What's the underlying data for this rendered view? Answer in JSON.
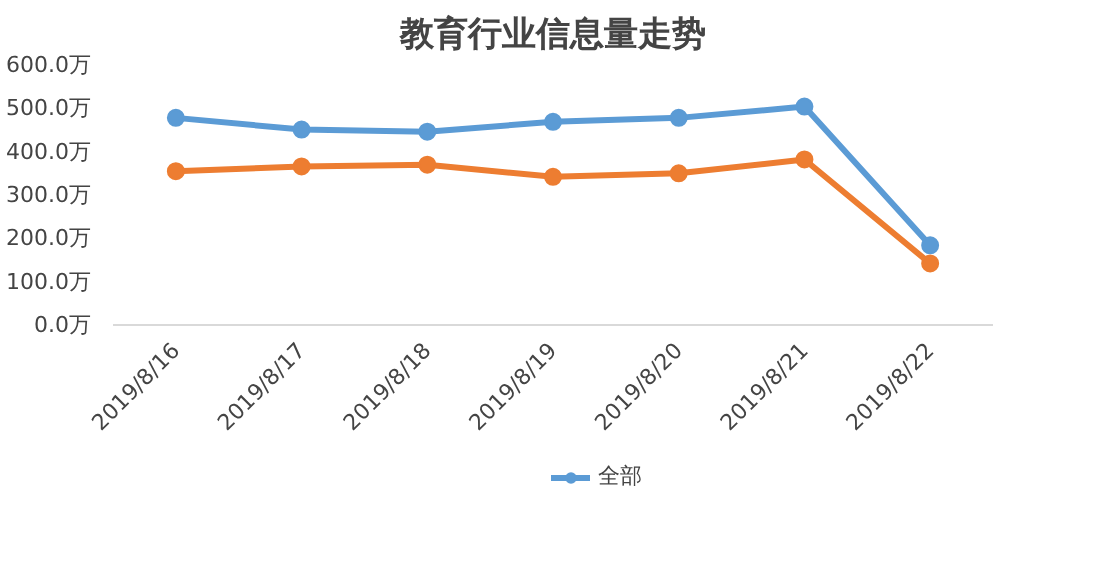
{
  "chart_data": {
    "type": "line",
    "title": "教育行业信息量走势",
    "categories": [
      "2019/8/16",
      "2019/8/17",
      "2019/8/18",
      "2019/8/19",
      "2019/8/20",
      "2019/8/21",
      "2019/8/22"
    ],
    "series": [
      {
        "name": "全部",
        "color": "#5b9bd5",
        "values": [
          478,
          451,
          446,
          469,
          478,
          504,
          184
        ]
      },
      {
        "color": "#ed7d31",
        "values": [
          355,
          366,
          370,
          342,
          350,
          382,
          142
        ]
      }
    ],
    "ylim": [
      0,
      600
    ],
    "yticks": [
      {
        "value": 0,
        "label": "0.0万"
      },
      {
        "value": 100,
        "label": "100.0万"
      },
      {
        "value": 200,
        "label": "200.0万"
      },
      {
        "value": 300,
        "label": "300.0万"
      },
      {
        "value": 400,
        "label": "400.0万"
      },
      {
        "value": 500,
        "label": "500.0万"
      },
      {
        "value": 600,
        "label": "600.0万"
      }
    ],
    "grid": false,
    "legend": "bottom",
    "marker": "circle",
    "line_style": "solid"
  }
}
